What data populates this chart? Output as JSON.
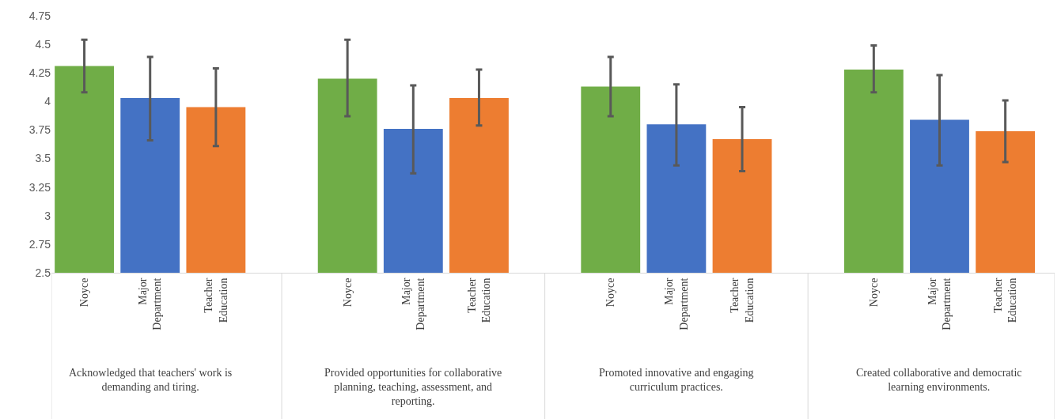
{
  "chart_data": {
    "type": "bar",
    "categories": [
      "Noyce",
      "Major Department",
      "Teacher Education",
      null,
      "Noyce",
      "Major Department",
      "Teacher Education",
      null,
      "Noyce",
      "Major Department",
      "Teacher Education",
      null,
      "Noyce",
      "Major Department",
      "Teacher Education"
    ],
    "values": [
      4.31,
      4.03,
      3.95,
      null,
      4.2,
      3.76,
      4.03,
      null,
      4.13,
      3.8,
      3.67,
      null,
      4.28,
      3.84,
      3.74
    ],
    "colors": [
      "#70ad47",
      "#4472c4",
      "#ed7d31",
      null,
      "#70ad47",
      "#4472c4",
      "#ed7d31",
      null,
      "#70ad47",
      "#4472c4",
      "#ed7d31",
      null,
      "#70ad47",
      "#4472c4",
      "#ed7d31"
    ],
    "errors": [
      [
        4.08,
        4.54
      ],
      [
        3.66,
        4.39
      ],
      [
        3.61,
        4.29
      ],
      null,
      [
        3.87,
        4.54
      ],
      [
        3.37,
        4.14
      ],
      [
        3.79,
        4.28
      ],
      null,
      [
        3.87,
        4.39
      ],
      [
        3.44,
        4.15
      ],
      [
        3.39,
        3.95
      ],
      null,
      [
        4.08,
        4.49
      ],
      [
        3.44,
        4.23
      ],
      [
        3.47,
        4.01
      ]
    ],
    "annotations": [
      "Acknowledged that teachers' work is demanding and tiring.",
      "Provided opportunities for collaborative planning, teaching, assessment, and reporting.",
      "Promoted innovative and engaging curriculum practices.",
      "Created collaborative and democratic learning environments."
    ],
    "ylim": [
      2.5,
      4.75
    ],
    "yticks": [
      2.5,
      2.75,
      3,
      3.25,
      3.5,
      3.75,
      4,
      4.25,
      4.5,
      4.75
    ],
    "grid": false
  }
}
